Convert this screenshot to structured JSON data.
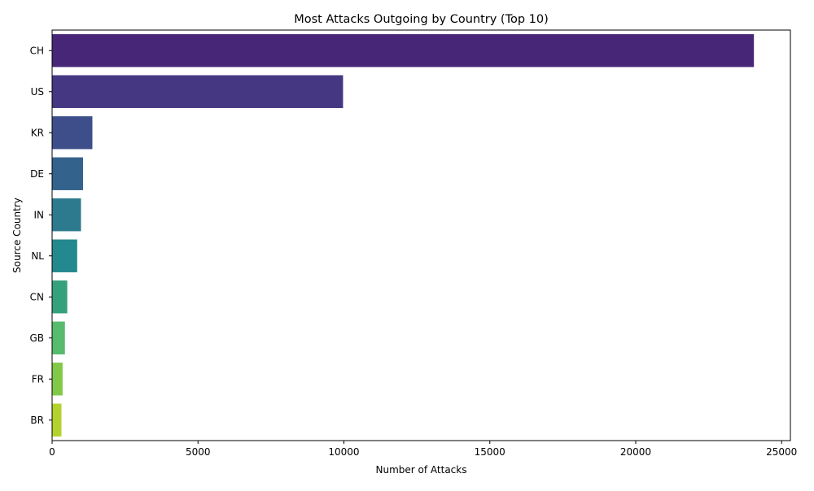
{
  "chart_data": {
    "type": "bar",
    "orientation": "horizontal",
    "title": "Most Attacks Outgoing by Country (Top 10)",
    "xlabel": "Number of Attacks",
    "ylabel": "Source Country",
    "categories": [
      "CH",
      "US",
      "KR",
      "DE",
      "IN",
      "NL",
      "CN",
      "GB",
      "FR",
      "BR"
    ],
    "values": [
      24050,
      9970,
      1380,
      1060,
      990,
      860,
      520,
      440,
      360,
      320
    ],
    "colors": [
      "#482677",
      "#453781",
      "#3d4e8a",
      "#33638d",
      "#2d7a8e",
      "#23898e",
      "#35a07c",
      "#56bb6d",
      "#83c949",
      "#b3d22d"
    ],
    "xlim": [
      0,
      25300
    ],
    "xticks": [
      0,
      5000,
      10000,
      15000,
      20000,
      25000
    ],
    "xtick_labels": [
      "0",
      "5000",
      "10000",
      "15000",
      "20000",
      "25000"
    ],
    "grid": false,
    "legend": "none"
  }
}
